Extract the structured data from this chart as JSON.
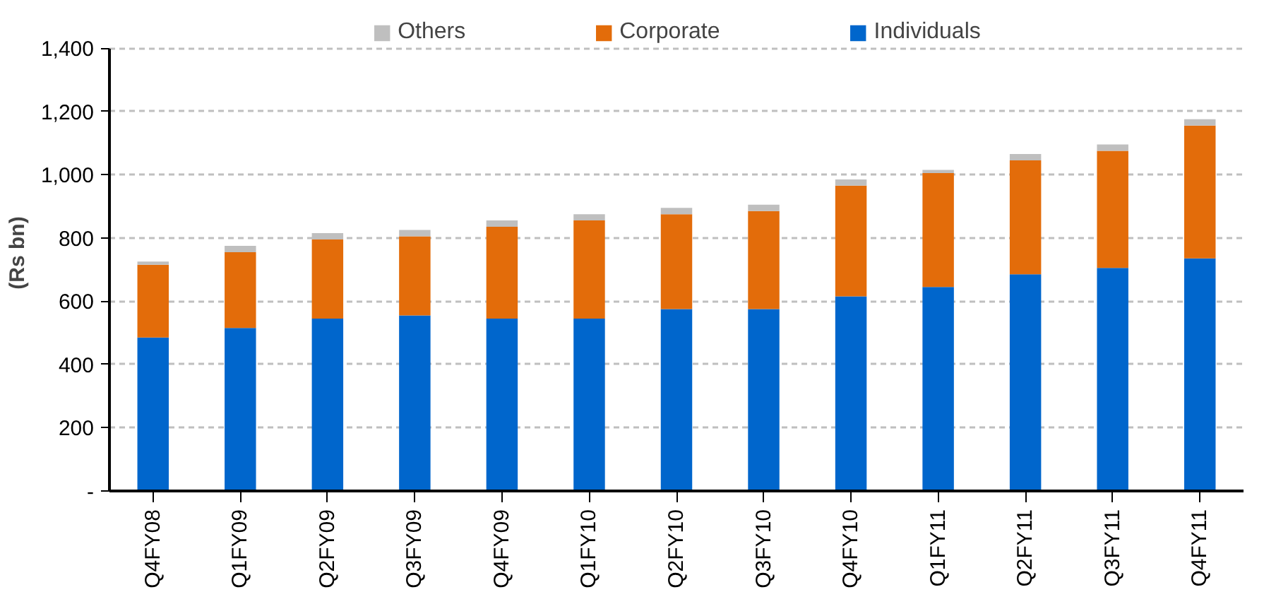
{
  "chart_data": {
    "type": "bar",
    "stacked": true,
    "ylabel": "(Rs bn)",
    "categories": [
      "Q4FY08",
      "Q1FY09",
      "Q2FY09",
      "Q3FY09",
      "Q4FY09",
      "Q1FY10",
      "Q2FY10",
      "Q3FY10",
      "Q4FY10",
      "Q1FY11",
      "Q2FY11",
      "Q3FY11",
      "Q4FY11"
    ],
    "series": [
      {
        "name": "Individuals",
        "color": "#0066cc",
        "values": [
          485,
          515,
          545,
          555,
          545,
          545,
          575,
          575,
          615,
          645,
          685,
          705,
          735
        ]
      },
      {
        "name": "Corporate",
        "color": "#e36c0a",
        "values": [
          230,
          240,
          250,
          250,
          290,
          310,
          300,
          310,
          350,
          360,
          360,
          370,
          420
        ]
      },
      {
        "name": "Others",
        "color": "#bfbfbf",
        "values": [
          10,
          20,
          20,
          20,
          20,
          20,
          20,
          20,
          20,
          10,
          20,
          20,
          20
        ]
      }
    ],
    "ylim": [
      0,
      1400
    ],
    "yticks": [
      {
        "value": 0,
        "label": "-"
      },
      {
        "value": 200,
        "label": "200"
      },
      {
        "value": 400,
        "label": "400"
      },
      {
        "value": 600,
        "label": "600"
      },
      {
        "value": 800,
        "label": "800"
      },
      {
        "value": 1000,
        "label": "1,000"
      },
      {
        "value": 1200,
        "label": "1,200"
      },
      {
        "value": 1400,
        "label": "1,400"
      }
    ],
    "grid": "y",
    "legend": "top"
  }
}
